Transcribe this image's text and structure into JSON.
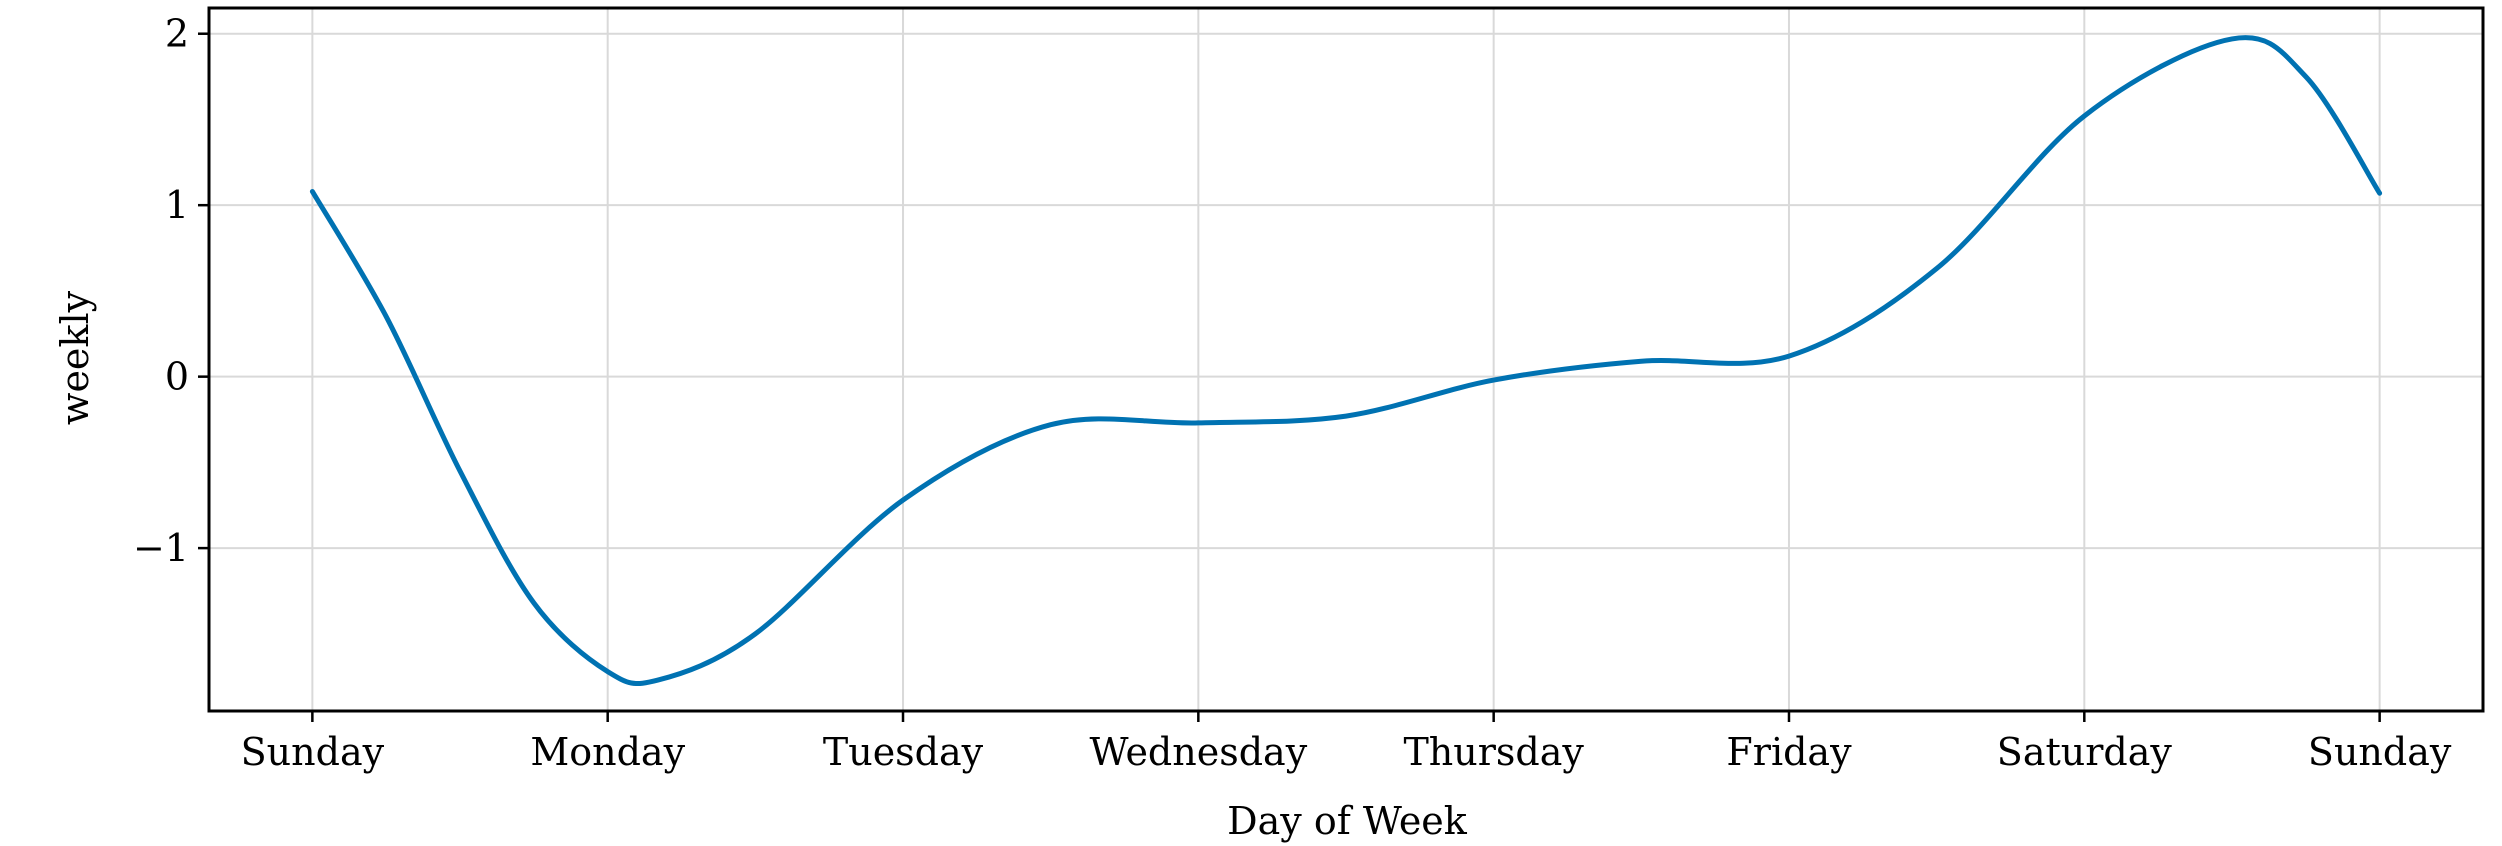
{
  "chart_data": {
    "type": "line",
    "title": "",
    "xlabel": "Day of Week",
    "ylabel": "weekly",
    "categories": [
      "Sunday",
      "Monday",
      "Tuesday",
      "Wednesday",
      "Thursday",
      "Friday",
      "Saturday",
      "Sunday"
    ],
    "xlim": [
      -0.35,
      7.35
    ],
    "ylim": [
      -1.95,
      2.15
    ],
    "y_ticks": [
      -1,
      0,
      1,
      2
    ],
    "y_tick_labels": [
      "−1",
      "0",
      "1",
      "2"
    ],
    "grid": true,
    "legend": "none",
    "series": [
      {
        "color": "#0072b2",
        "x": [
          0,
          0.25,
          0.5,
          0.75,
          1.0,
          1.17,
          1.5,
          2.0,
          2.5,
          3.0,
          3.5,
          4.0,
          4.5,
          5.0,
          5.5,
          6.0,
          6.5,
          6.75,
          7.0
        ],
        "y": [
          1.08,
          0.35,
          -0.55,
          -1.32,
          -1.72,
          -1.77,
          -1.5,
          -0.72,
          -0.28,
          -0.27,
          -0.23,
          -0.02,
          0.09,
          0.12,
          0.63,
          1.52,
          1.97,
          1.75,
          1.07
        ]
      }
    ]
  }
}
